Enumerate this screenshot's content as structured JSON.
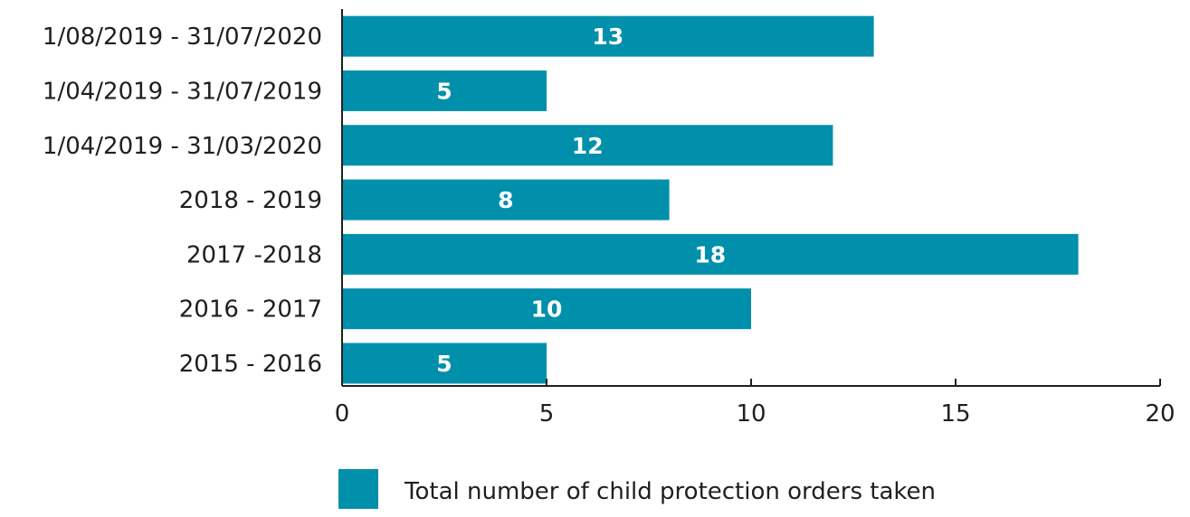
{
  "chart_data": {
    "type": "bar",
    "orientation": "horizontal",
    "categories": [
      "1/08/2019 - 31/07/2020",
      "1/04/2019 - 31/07/2019",
      "1/04/2019 - 31/03/2020",
      "2018 - 2019",
      "2017 -2018",
      "2016 - 2017",
      "2015 - 2016"
    ],
    "series": [
      {
        "name": "Total number of child protection orders taken",
        "values": [
          13,
          5,
          12,
          8,
          18,
          10,
          5
        ],
        "color": "#0090ab"
      }
    ],
    "xlim": [
      0,
      20
    ],
    "xticks": [
      0,
      5,
      10,
      15,
      20
    ],
    "grid": false,
    "data_labels": true,
    "legend_position": "bottom"
  }
}
